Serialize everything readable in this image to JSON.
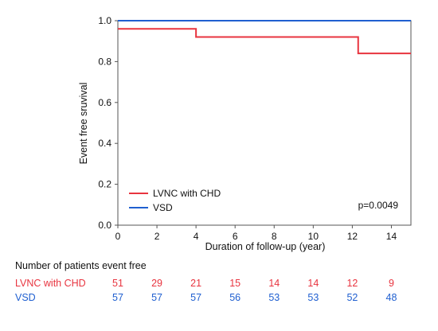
{
  "chart_data": {
    "type": "line",
    "style": "step",
    "ylabel": "Event free sruvival",
    "xlabel": "Duration of follow-up (year)",
    "xlim": [
      0,
      15
    ],
    "ylim": [
      0,
      1.0
    ],
    "xticks": [
      "0",
      "2",
      "4",
      "6",
      "8",
      "10",
      "12",
      "14"
    ],
    "yticks": [
      "0.0",
      "0.2",
      "0.4",
      "0.6",
      "0.8",
      "1.0"
    ],
    "grid": false,
    "legend_position": "bottom-left",
    "annotation": "p=0.0049",
    "series": [
      {
        "name": "LVNC with CHD",
        "color": "#e8343f",
        "x": [
          0,
          4,
          12.3,
          15
        ],
        "y": [
          0.96,
          0.92,
          0.84,
          0.84
        ]
      },
      {
        "name": "VSD",
        "color": "#1f5fd0",
        "x": [
          0,
          15
        ],
        "y": [
          1.0,
          1.0
        ]
      }
    ]
  },
  "risk_table": {
    "header": "Number of patients event free",
    "rows": [
      {
        "label": "LVNC with CHD",
        "color": "#e8343f",
        "values": [
          "51",
          "29",
          "21",
          "15",
          "14",
          "14",
          "12",
          "9"
        ]
      },
      {
        "label": "VSD",
        "color": "#1f5fd0",
        "values": [
          "57",
          "57",
          "57",
          "56",
          "53",
          "53",
          "52",
          "48"
        ]
      }
    ]
  }
}
